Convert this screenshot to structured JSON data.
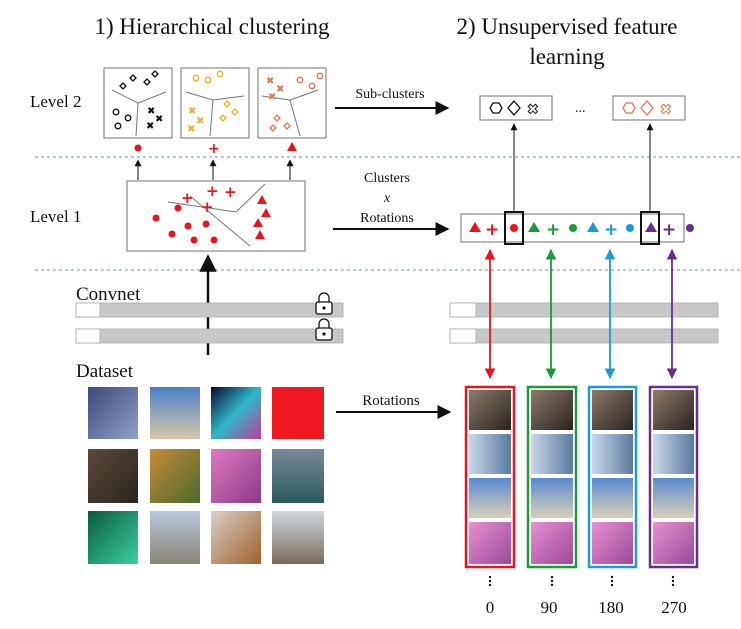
{
  "titles": {
    "hierarchical": "1) Hierarchical clustering",
    "unsupervised_line1": "2) Unsupervised feature",
    "unsupervised_line2": "learning"
  },
  "levels": {
    "level2": "Level 2",
    "level1": "Level 1"
  },
  "arrows": {
    "subclusters": "Sub-clusters",
    "clusters_line1": "Clusters",
    "clusters_x": "x",
    "clusters_line2": "Rotations",
    "rotations": "Rotations"
  },
  "convnet": "Convnet",
  "dataset": "Dataset",
  "ellipsis": "...",
  "rotation_angles": [
    "0",
    "90",
    "180",
    "270"
  ],
  "colors": {
    "red": "#e8141e",
    "green": "#1a9a3a",
    "cyan": "#1a9ad6",
    "purple": "#6a2d8f",
    "orange_l2": "#f0b020",
    "salmon_l2": "#e8764a",
    "black": "#111111",
    "divider": "#6f8fb8"
  },
  "icons": {
    "lock": "lock-icon",
    "circle": "circle-marker",
    "plus": "plus-marker",
    "triangle": "triangle-marker"
  }
}
